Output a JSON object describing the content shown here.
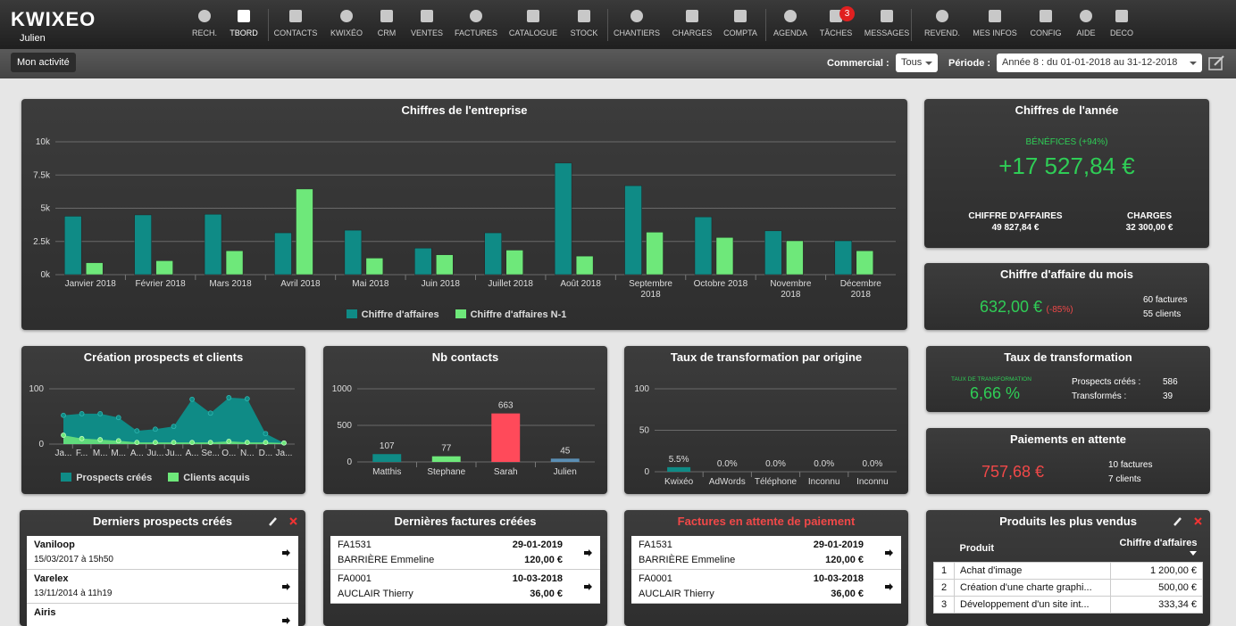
{
  "header": {
    "logo": "KWIXEO",
    "user": "Julien",
    "nav": [
      {
        "label": "RECH."
      },
      {
        "label": "TBORD"
      },
      {
        "label": "CONTACTS"
      },
      {
        "label": "KWIXÉO"
      },
      {
        "label": "CRM"
      },
      {
        "label": "VENTES"
      },
      {
        "label": "FACTURES"
      },
      {
        "label": "CATALOGUE"
      },
      {
        "label": "STOCK"
      },
      {
        "label": "CHANTIERS"
      },
      {
        "label": "CHARGES"
      },
      {
        "label": "COMPTA"
      },
      {
        "label": "AGENDA"
      },
      {
        "label": "TÂCHES",
        "badge": "3"
      },
      {
        "label": "MESSAGES"
      },
      {
        "label": "REVEND."
      },
      {
        "label": "MES INFOS"
      },
      {
        "label": "CONFIG"
      },
      {
        "label": "AIDE"
      },
      {
        "label": "DECO"
      }
    ]
  },
  "toolbar": {
    "button": "Mon activité",
    "commercial_label": "Commercial :",
    "commercial_value": "Tous",
    "period_label": "Période :",
    "period_value": "Année 8 : du 01-01-2018 au 31-12-2018"
  },
  "chart_data": [
    {
      "type": "bar",
      "title": "Chiffres de l'entreprise",
      "categories": [
        "Janvier 2018",
        "Février 2018",
        "Mars 2018",
        "Avril 2018",
        "Mai 2018",
        "Juin 2018",
        "Juillet 2018",
        "Août 2018",
        "Septembre 2018",
        "Octobre 2018",
        "Novembre 2018",
        "Décembre 2018"
      ],
      "series": [
        {
          "name": "Chiffre d'affaires",
          "color": "#0f8b86",
          "values": [
            4400,
            4500,
            4550,
            3150,
            3350,
            2000,
            3150,
            8400,
            6700,
            4350,
            3300,
            2550
          ]
        },
        {
          "name": "Chiffre d'affaires N-1",
          "color": "#6ee87a",
          "values": [
            900,
            1050,
            1800,
            6450,
            1250,
            1500,
            1850,
            1400,
            3200,
            2800,
            2550,
            1800
          ]
        }
      ],
      "ylim": [
        0,
        10000
      ],
      "yticks": [
        {
          "value": 0,
          "label": "0k"
        },
        {
          "value": 2500,
          "label": "2.5k"
        },
        {
          "value": 5000,
          "label": "5k"
        },
        {
          "value": 7500,
          "label": "7.5k"
        },
        {
          "value": 10000,
          "label": "10k"
        }
      ],
      "grid": true,
      "legend": "bottom"
    },
    {
      "type": "area",
      "title": "Création prospects et clients",
      "categories": [
        "Ja...",
        "F...",
        "M...",
        "M...",
        "A...",
        "Ju...",
        "Ju...",
        "A...",
        "Se...",
        "O...",
        "N...",
        "D...",
        "Ja..."
      ],
      "series": [
        {
          "name": "Prospects créés",
          "color": "#0f8b86",
          "values": [
            52,
            55,
            55,
            48,
            24,
            27,
            32,
            81,
            56,
            84,
            82,
            19,
            2
          ]
        },
        {
          "name": "Clients acquis",
          "color": "#6ee87a",
          "values": [
            16,
            10,
            8,
            6,
            3,
            3,
            3,
            3,
            3,
            5,
            3,
            3,
            2
          ]
        }
      ],
      "ylim": [
        0,
        100
      ],
      "yticks": [
        0,
        100
      ],
      "grid": true,
      "legend": "bottom"
    },
    {
      "type": "bar",
      "title": "Nb contacts",
      "categories": [
        "Matthis",
        "Stephane",
        "Sarah",
        "Julien"
      ],
      "values": [
        107,
        77,
        663,
        45
      ],
      "colors": [
        "#0f8b86",
        "#6ee87a",
        "#ff4a5a",
        "#5b8fb5"
      ],
      "ylim": [
        0,
        1000
      ],
      "yticks": [
        0,
        500,
        1000
      ],
      "grid": true
    },
    {
      "type": "bar",
      "title": "Taux de transformation par origine",
      "categories": [
        "Kwixéo",
        "AdWords",
        "Téléphone",
        "Inconnu",
        "Inconnu"
      ],
      "values": [
        5.5,
        0,
        0,
        0,
        0
      ],
      "value_labels": [
        "5.5%",
        "0.0%",
        "0.0%",
        "0.0%",
        "0.0%"
      ],
      "color": "#0f8b86",
      "ylim": [
        0,
        100
      ],
      "yticks": [
        0,
        50,
        100
      ],
      "grid": true
    }
  ],
  "year_summary": {
    "title": "Chiffres de l'année",
    "profit_label": "BÉNÉFICES (+94%)",
    "profit": "+17 527,84 €",
    "revenue_label": "CHIFFRE D'AFFAIRES",
    "revenue": "49 827,84 €",
    "charges_label": "CHARGES",
    "charges": "32 300,00 €"
  },
  "month_revenue": {
    "title": "Chiffre d'affaire du mois",
    "amount": "632,00 €",
    "change": "(-85%)",
    "invoices": "60 factures",
    "clients": "55 clients"
  },
  "transformation": {
    "title": "Taux de transformation",
    "rate_label": "TAUX DE TRANSFORMATION",
    "rate": "6,66 %",
    "prospects_label": "Prospects créés :",
    "prospects": "586",
    "transformed_label": "Transformés :",
    "transformed": "39"
  },
  "pending_payments": {
    "title": "Paiements en attente",
    "amount": "757,68 €",
    "invoices": "10 factures",
    "clients": "7 clients"
  },
  "latest_prospects": {
    "title": "Derniers prospects créés",
    "rows": [
      {
        "name": "Vaniloop",
        "date": "15/03/2017 à 15h50"
      },
      {
        "name": "Varelex",
        "date": "13/11/2014 à 11h19"
      },
      {
        "name": "Airis"
      }
    ]
  },
  "latest_invoices": {
    "title": "Dernières factures créées",
    "rows": [
      {
        "number": "FA1531",
        "date": "29-01-2019",
        "client": "BARRIÈRE Emmeline",
        "amount": "120,00 €"
      },
      {
        "number": "FA0001",
        "date": "10-03-2018",
        "client": "AUCLAIR Thierry",
        "amount": "36,00 €"
      }
    ]
  },
  "unpaid_invoices": {
    "title": "Factures en attente de paiement",
    "rows": [
      {
        "number": "FA1531",
        "date": "29-01-2019",
        "client": "BARRIÈRE Emmeline",
        "amount": "120,00 €"
      },
      {
        "number": "FA0001",
        "date": "10-03-2018",
        "client": "AUCLAIR Thierry",
        "amount": "36,00 €"
      }
    ]
  },
  "top_products": {
    "title": "Produits les plus vendus",
    "columns": [
      "Produit",
      "Chiffre d'affaires"
    ],
    "rows": [
      [
        "1",
        "Achat d'image",
        "1 200,00 €"
      ],
      [
        "2",
        "Création d'une charte graphi...",
        "500,00 €"
      ],
      [
        "3",
        "Développement d'un site int...",
        "333,34 €"
      ]
    ]
  }
}
